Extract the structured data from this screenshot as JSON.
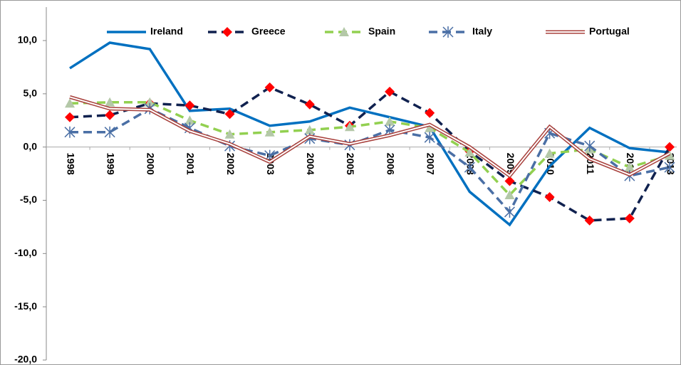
{
  "chart_data": {
    "type": "line",
    "categories": [
      "1998",
      "1999",
      "2000",
      "2001",
      "2002",
      "2003",
      "2004",
      "2005",
      "2006",
      "2007",
      "2008",
      "2009",
      "2010",
      "2011",
      "2012",
      "2013"
    ],
    "series": [
      {
        "name": "Ireland",
        "color": "#0070c0",
        "dash": false,
        "marker": "none",
        "values": [
          7.4,
          9.8,
          9.2,
          3.4,
          3.6,
          2.0,
          2.4,
          3.7,
          2.8,
          1.9,
          -4.2,
          -7.3,
          -1.8,
          1.8,
          -0.1,
          -0.5
        ]
      },
      {
        "name": "Greece",
        "color": "#10214f",
        "dash": true,
        "marker": "diamond",
        "values": [
          2.8,
          3.0,
          4.1,
          3.9,
          3.1,
          5.6,
          4.0,
          2.0,
          5.2,
          3.2,
          -0.4,
          -3.2,
          -4.7,
          -6.9,
          -6.7,
          0.0
        ]
      },
      {
        "name": "Spain",
        "color": "#92d050",
        "dash": true,
        "marker": "triangle",
        "values": [
          4.1,
          4.2,
          4.2,
          2.5,
          1.2,
          1.4,
          1.6,
          1.9,
          2.4,
          1.8,
          -0.5,
          -4.5,
          -0.6,
          -0.2,
          -1.9,
          -0.8
        ]
      },
      {
        "name": "Italy",
        "color": "#4a6fa5",
        "dash": true,
        "marker": "star",
        "values": [
          1.4,
          1.4,
          3.6,
          1.8,
          0.1,
          -0.8,
          0.8,
          0.2,
          1.6,
          0.9,
          -1.9,
          -6.1,
          1.3,
          0.1,
          -2.7,
          -1.9
        ]
      },
      {
        "name": "Portugal",
        "color": "#a8403c",
        "dash": false,
        "marker": "double",
        "values": [
          4.7,
          3.6,
          3.5,
          1.5,
          0.3,
          -1.4,
          1.0,
          0.3,
          1.1,
          2.1,
          0.0,
          -2.7,
          1.9,
          -1.1,
          -2.6,
          -0.6
        ]
      }
    ],
    "ylim": [
      -20,
      10
    ],
    "yticks": [
      {
        "value": -20,
        "label": "-20,0"
      },
      {
        "value": -15,
        "label": "-15,0"
      },
      {
        "value": -10,
        "label": "-10,0"
      },
      {
        "value": -5,
        "label": "-5,0"
      },
      {
        "value": 0,
        "label": "0,0"
      },
      {
        "value": 5,
        "label": "5,0"
      },
      {
        "value": 10,
        "label": "10,0"
      }
    ],
    "grid": false
  }
}
